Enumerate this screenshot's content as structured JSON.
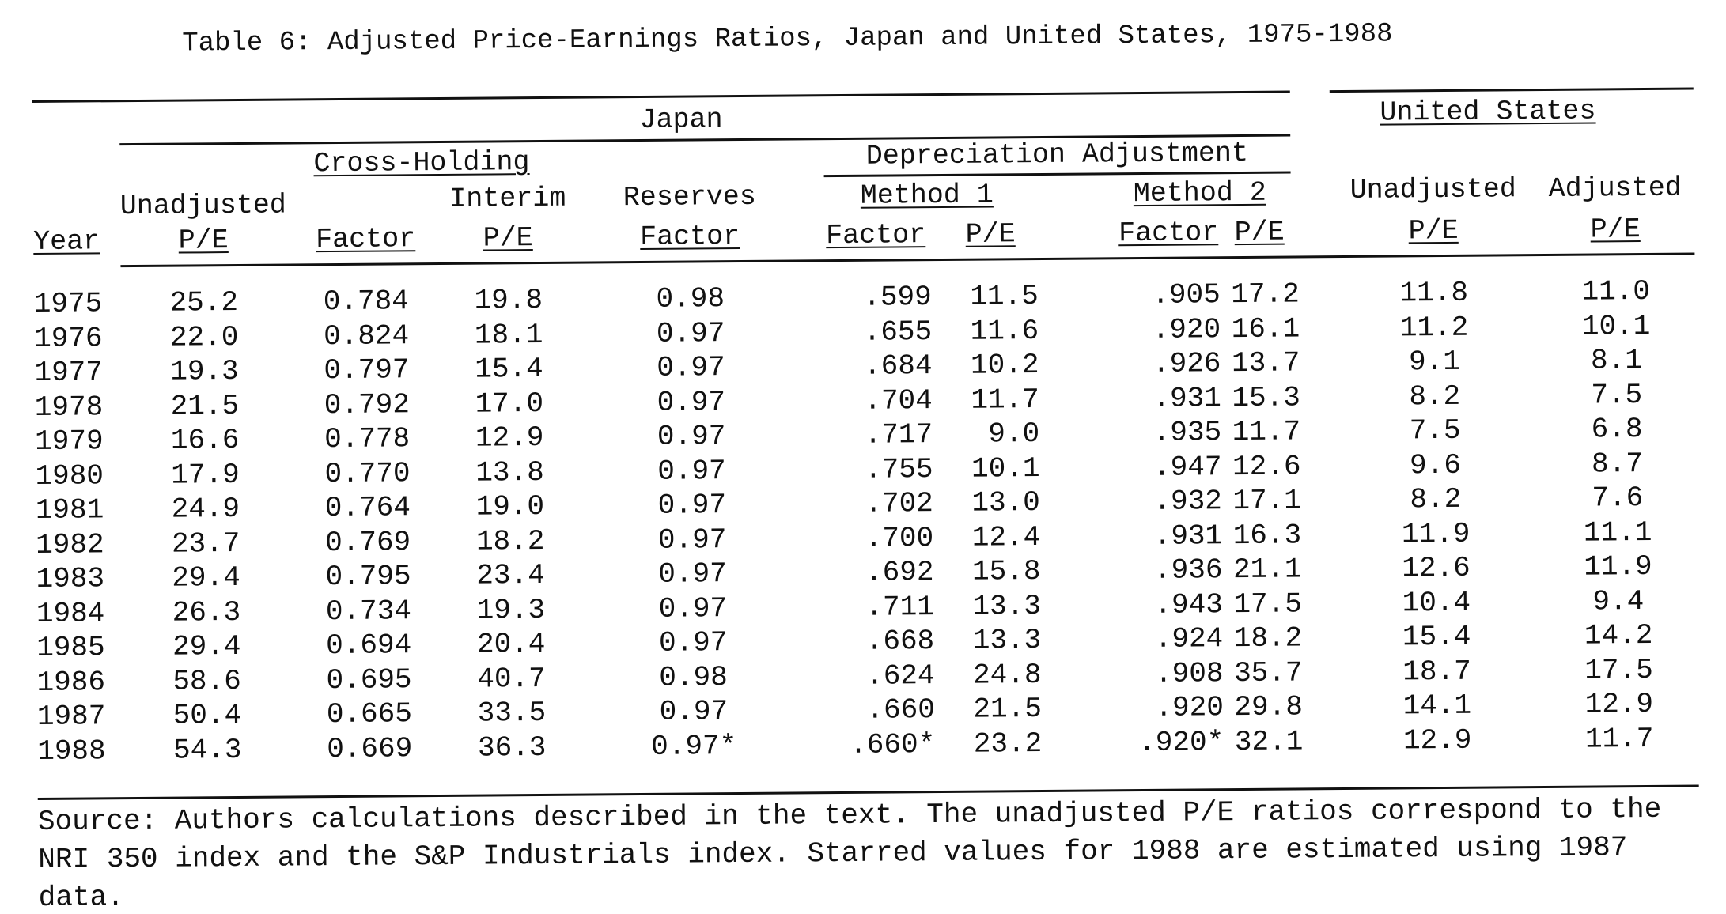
{
  "title": "Table 6:  Adjusted Price-Earnings Ratios, Japan and United States, 1975-1988",
  "headers": {
    "japan": "Japan",
    "united_states": "United States",
    "cross_holding": "Cross-Holding",
    "depreciation": "Depreciation Adjustment",
    "method1": "Method 1",
    "method2": "Method 2",
    "unadjusted": "Unadjusted",
    "interim": "Interim",
    "reserves": "Reserves",
    "adjusted": "Adjusted",
    "year": "Year",
    "pe": "P/E",
    "factor": "Factor"
  },
  "rows": [
    [
      "1975",
      "25.2",
      "0.784",
      "19.8",
      "0.98",
      ".599",
      "11.5",
      ".905",
      "17.2",
      "11.8",
      "11.0"
    ],
    [
      "1976",
      "22.0",
      "0.824",
      "18.1",
      "0.97",
      ".655",
      "11.6",
      ".920",
      "16.1",
      "11.2",
      "10.1"
    ],
    [
      "1977",
      "19.3",
      "0.797",
      "15.4",
      "0.97",
      ".684",
      "10.2",
      ".926",
      "13.7",
      "9.1",
      "8.1"
    ],
    [
      "1978",
      "21.5",
      "0.792",
      "17.0",
      "0.97",
      ".704",
      "11.7",
      ".931",
      "15.3",
      "8.2",
      "7.5"
    ],
    [
      "1979",
      "16.6",
      "0.778",
      "12.9",
      "0.97",
      ".717",
      "9.0",
      ".935",
      "11.7",
      "7.5",
      "6.8"
    ],
    [
      "1980",
      "17.9",
      "0.770",
      "13.8",
      "0.97",
      ".755",
      "10.1",
      ".947",
      "12.6",
      "9.6",
      "8.7"
    ],
    [
      "1981",
      "24.9",
      "0.764",
      "19.0",
      "0.97",
      ".702",
      "13.0",
      ".932",
      "17.1",
      "8.2",
      "7.6"
    ],
    [
      "1982",
      "23.7",
      "0.769",
      "18.2",
      "0.97",
      ".700",
      "12.4",
      ".931",
      "16.3",
      "11.9",
      "11.1"
    ],
    [
      "1983",
      "29.4",
      "0.795",
      "23.4",
      "0.97",
      ".692",
      "15.8",
      ".936",
      "21.1",
      "12.6",
      "11.9"
    ],
    [
      "1984",
      "26.3",
      "0.734",
      "19.3",
      "0.97",
      ".711",
      "13.3",
      ".943",
      "17.5",
      "10.4",
      "9.4"
    ],
    [
      "1985",
      "29.4",
      "0.694",
      "20.4",
      "0.97",
      ".668",
      "13.3",
      ".924",
      "18.2",
      "15.4",
      "14.2"
    ],
    [
      "1986",
      "58.6",
      "0.695",
      "40.7",
      "0.98",
      ".624",
      "24.8",
      ".908",
      "35.7",
      "18.7",
      "17.5"
    ],
    [
      "1987",
      "50.4",
      "0.665",
      "33.5",
      "0.97",
      ".660",
      "21.5",
      ".920",
      "29.8",
      "14.1",
      "12.9"
    ],
    [
      "1988",
      "54.3",
      "0.669",
      "36.3",
      "0.97*",
      ".660*",
      "23.2",
      ".920*",
      "32.1",
      "12.9",
      "11.7"
    ]
  ],
  "source": {
    "line1": "Source:  Authors calculations described in the text.  The unadjusted P/E ratios correspond to the",
    "line2": "NRI 350 index and the S&P Industrials index.  Starred values for 1988 are estimated using 1987",
    "line3": "data."
  }
}
